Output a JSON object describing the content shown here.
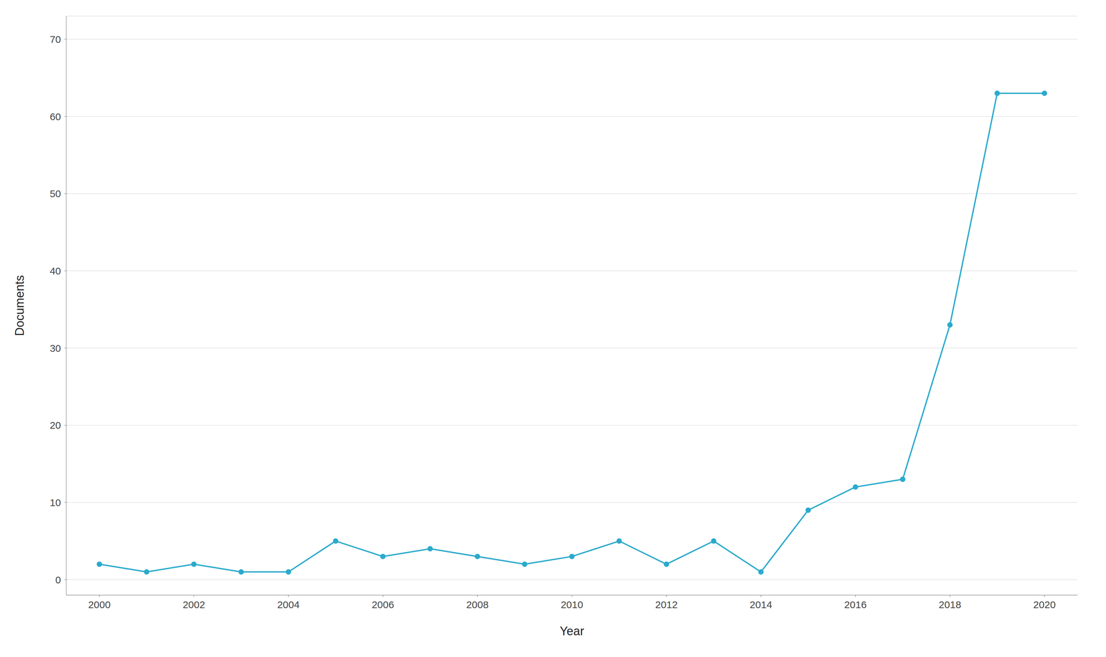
{
  "chart_data": {
    "type": "line",
    "xlabel": "Year",
    "ylabel": "Documents",
    "x": [
      2000,
      2001,
      2002,
      2003,
      2004,
      2005,
      2006,
      2007,
      2008,
      2009,
      2010,
      2011,
      2012,
      2013,
      2014,
      2015,
      2016,
      2017,
      2018,
      2019,
      2020
    ],
    "values": [
      2,
      1,
      2,
      1,
      1,
      5,
      3,
      4,
      3,
      2,
      3,
      5,
      2,
      5,
      1,
      9,
      12,
      13,
      33,
      63,
      63
    ],
    "color": "#2BAACC",
    "marker": "circle",
    "xlim": [
      1999.3,
      2020.7
    ],
    "ylim": [
      -2,
      73
    ],
    "xticks": [
      2000,
      2002,
      2004,
      2006,
      2008,
      2010,
      2012,
      2014,
      2016,
      2018,
      2020
    ],
    "yticks": [
      0,
      10,
      20,
      30,
      40,
      50,
      60,
      70
    ],
    "grid": "y"
  }
}
